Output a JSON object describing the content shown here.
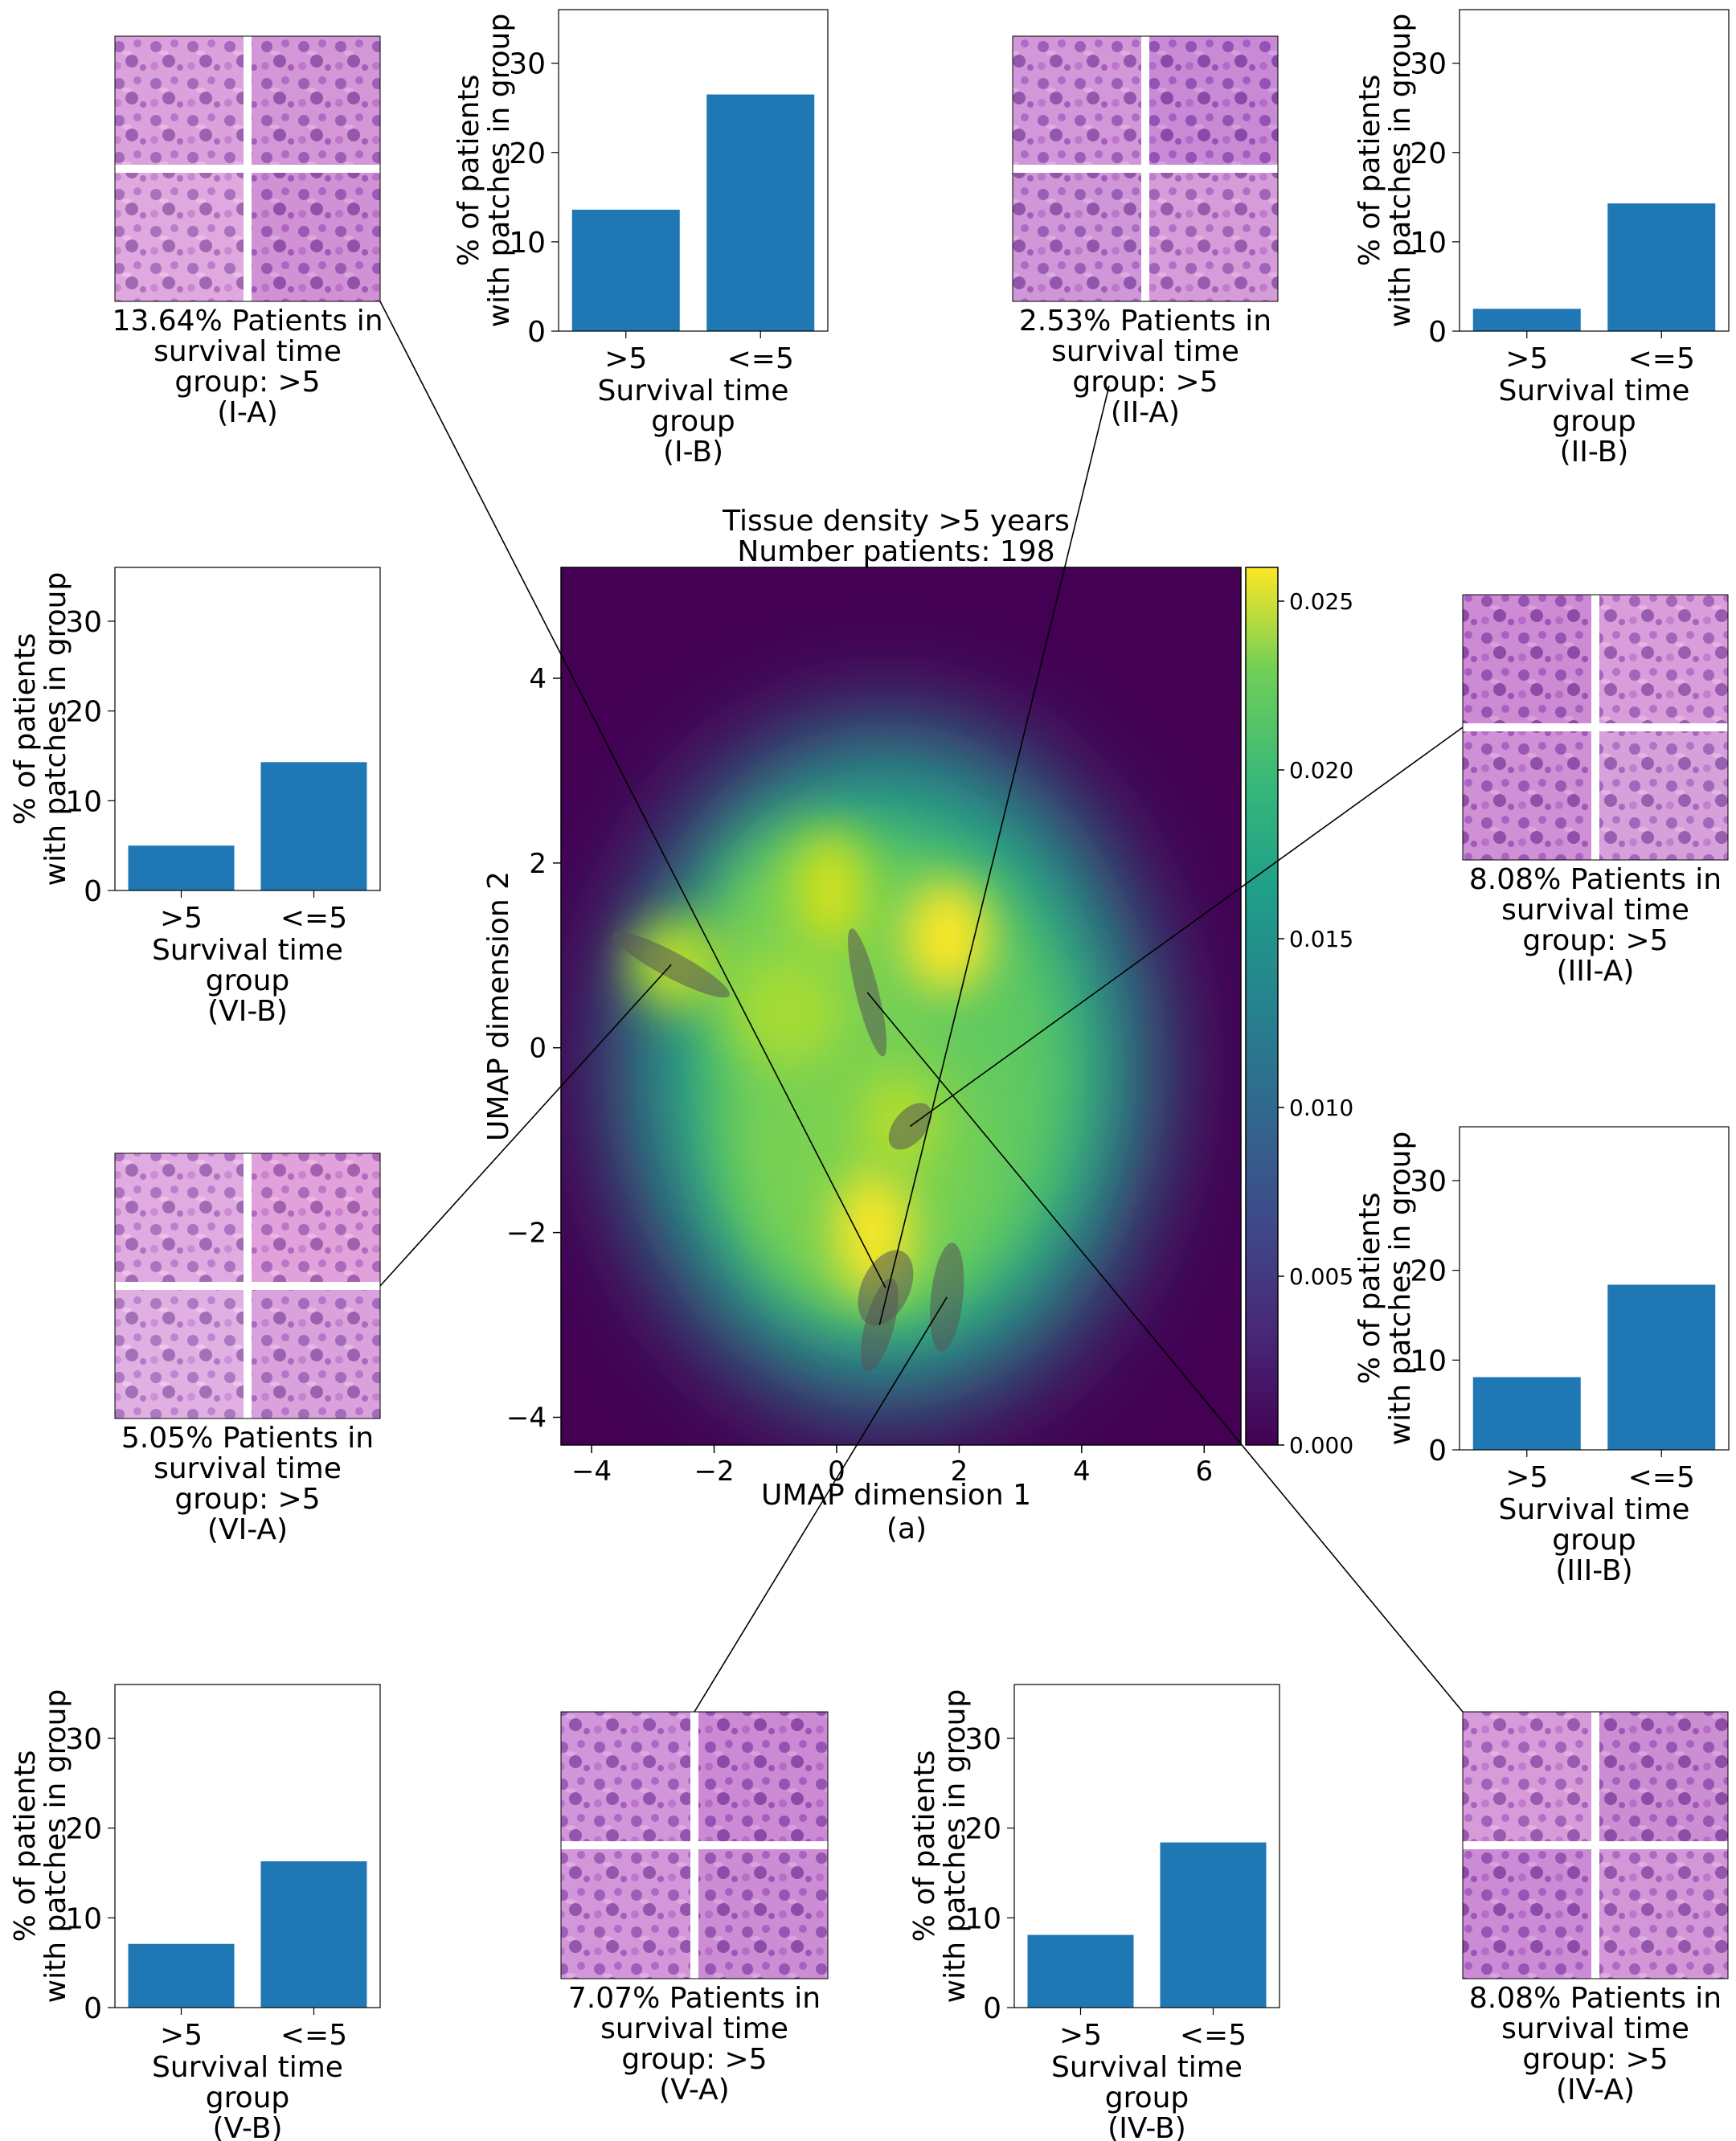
{
  "chart_data": [
    {
      "type": "heatmap",
      "title": "Tissue density >5 years",
      "subtitle": "Number patients: 198",
      "xlabel": "UMAP dimension 1",
      "ylabel": "UMAP dimension 2",
      "caption": "(a)",
      "xlim": [
        -4.5,
        6.6
      ],
      "ylim": [
        -4.3,
        5.2
      ],
      "xticks": [
        -4,
        -2,
        0,
        2,
        4,
        6
      ],
      "yticks": [
        -4,
        -2,
        0,
        2,
        4
      ],
      "colorbar": {
        "colormap": "viridis",
        "range": [
          0.0,
          0.026
        ],
        "ticks": [
          "0.000",
          "0.005",
          "0.010",
          "0.015",
          "0.020",
          "0.025"
        ]
      },
      "highlighted_regions": [
        {
          "label": "I",
          "center": [
            0.8,
            -2.6
          ],
          "note": "cluster ellipse"
        },
        {
          "label": "II",
          "center": [
            0.7,
            -3.0
          ],
          "note": "cluster ellipse"
        },
        {
          "label": "III",
          "center": [
            1.2,
            -0.85
          ],
          "note": "cluster ellipse"
        },
        {
          "label": "IV",
          "center": [
            0.5,
            0.6
          ],
          "note": "cluster ellipse"
        },
        {
          "label": "V",
          "center": [
            1.8,
            -2.7
          ],
          "note": "cluster ellipse"
        },
        {
          "label": "VI",
          "center": [
            -2.7,
            0.9
          ],
          "note": "cluster ellipse"
        }
      ]
    },
    {
      "type": "bar",
      "id": "I-B",
      "categories": [
        ">5",
        "<=5"
      ],
      "values": [
        13.6,
        26.5
      ],
      "xlabel": "Survival time group",
      "ylabel": "% of patients with patches in group",
      "caption": "(I-B)",
      "ylim": [
        0,
        36
      ],
      "yticks": [
        0,
        10,
        20,
        30
      ]
    },
    {
      "type": "bar",
      "id": "II-B",
      "categories": [
        ">5",
        "<=5"
      ],
      "values": [
        2.5,
        14.3
      ],
      "xlabel": "Survival time group",
      "ylabel": "% of patients with patches in group",
      "caption": "(II-B)",
      "ylim": [
        0,
        36
      ],
      "yticks": [
        0,
        10,
        20,
        30
      ]
    },
    {
      "type": "bar",
      "id": "VI-B",
      "categories": [
        ">5",
        "<=5"
      ],
      "values": [
        5.0,
        14.3
      ],
      "xlabel": "Survival time group",
      "ylabel": "% of patients with patches in group",
      "caption": "(VI-B)",
      "ylim": [
        0,
        36
      ],
      "yticks": [
        0,
        10,
        20,
        30
      ]
    },
    {
      "type": "bar",
      "id": "III-B",
      "categories": [
        ">5",
        "<=5"
      ],
      "values": [
        8.1,
        18.4
      ],
      "xlabel": "Survival time group",
      "ylabel": "% of patients with patches in group",
      "caption": "(III-B)",
      "ylim": [
        0,
        36
      ],
      "yticks": [
        0,
        10,
        20,
        30
      ]
    },
    {
      "type": "bar",
      "id": "V-B",
      "categories": [
        ">5",
        "<=5"
      ],
      "values": [
        7.1,
        16.3
      ],
      "xlabel": "Survival time group",
      "ylabel": "% of patients with patches in group",
      "caption": "(V-B)",
      "ylim": [
        0,
        36
      ],
      "yticks": [
        0,
        10,
        20,
        30
      ]
    },
    {
      "type": "bar",
      "id": "IV-B",
      "categories": [
        ">5",
        "<=5"
      ],
      "values": [
        8.1,
        18.4
      ],
      "xlabel": "Survival time group",
      "ylabel": "% of patients with patches in group",
      "caption": "(IV-B)",
      "ylim": [
        0,
        36
      ],
      "yticks": [
        0,
        10,
        20,
        30
      ]
    }
  ],
  "patch_panels": [
    {
      "id": "I-A",
      "lines": [
        "13.64% Patients in",
        "survival time",
        "group: >5",
        "(I-A)"
      ]
    },
    {
      "id": "II-A",
      "lines": [
        "2.53% Patients in",
        "survival time",
        "group: >5",
        "(II-A)"
      ]
    },
    {
      "id": "III-A",
      "lines": [
        "8.08% Patients in",
        "survival time",
        "group: >5",
        "(III-A)"
      ]
    },
    {
      "id": "VI-A",
      "lines": [
        "5.05% Patients in",
        "survival time",
        "group: >5",
        "(VI-A)"
      ]
    },
    {
      "id": "V-A",
      "lines": [
        "7.07% Patients in",
        "survival time",
        "group: >5",
        "(V-A)"
      ]
    },
    {
      "id": "IV-A",
      "lines": [
        "8.08% Patients in",
        "survival time",
        "group: >5",
        "(IV-A)"
      ]
    }
  ],
  "bar_axis_text": {
    "ylabel_line1": "% of patients",
    "ylabel_line2": "with patches in group",
    "xlabel_line1": "Survival time",
    "xlabel_line2": "group"
  },
  "colors": {
    "bar": "#1f77b4",
    "tissue_light": "#e8b4e4",
    "tissue_mid": "#c46ac8",
    "tissue_dark": "#6a2a8c",
    "ellipse": "#555555"
  }
}
